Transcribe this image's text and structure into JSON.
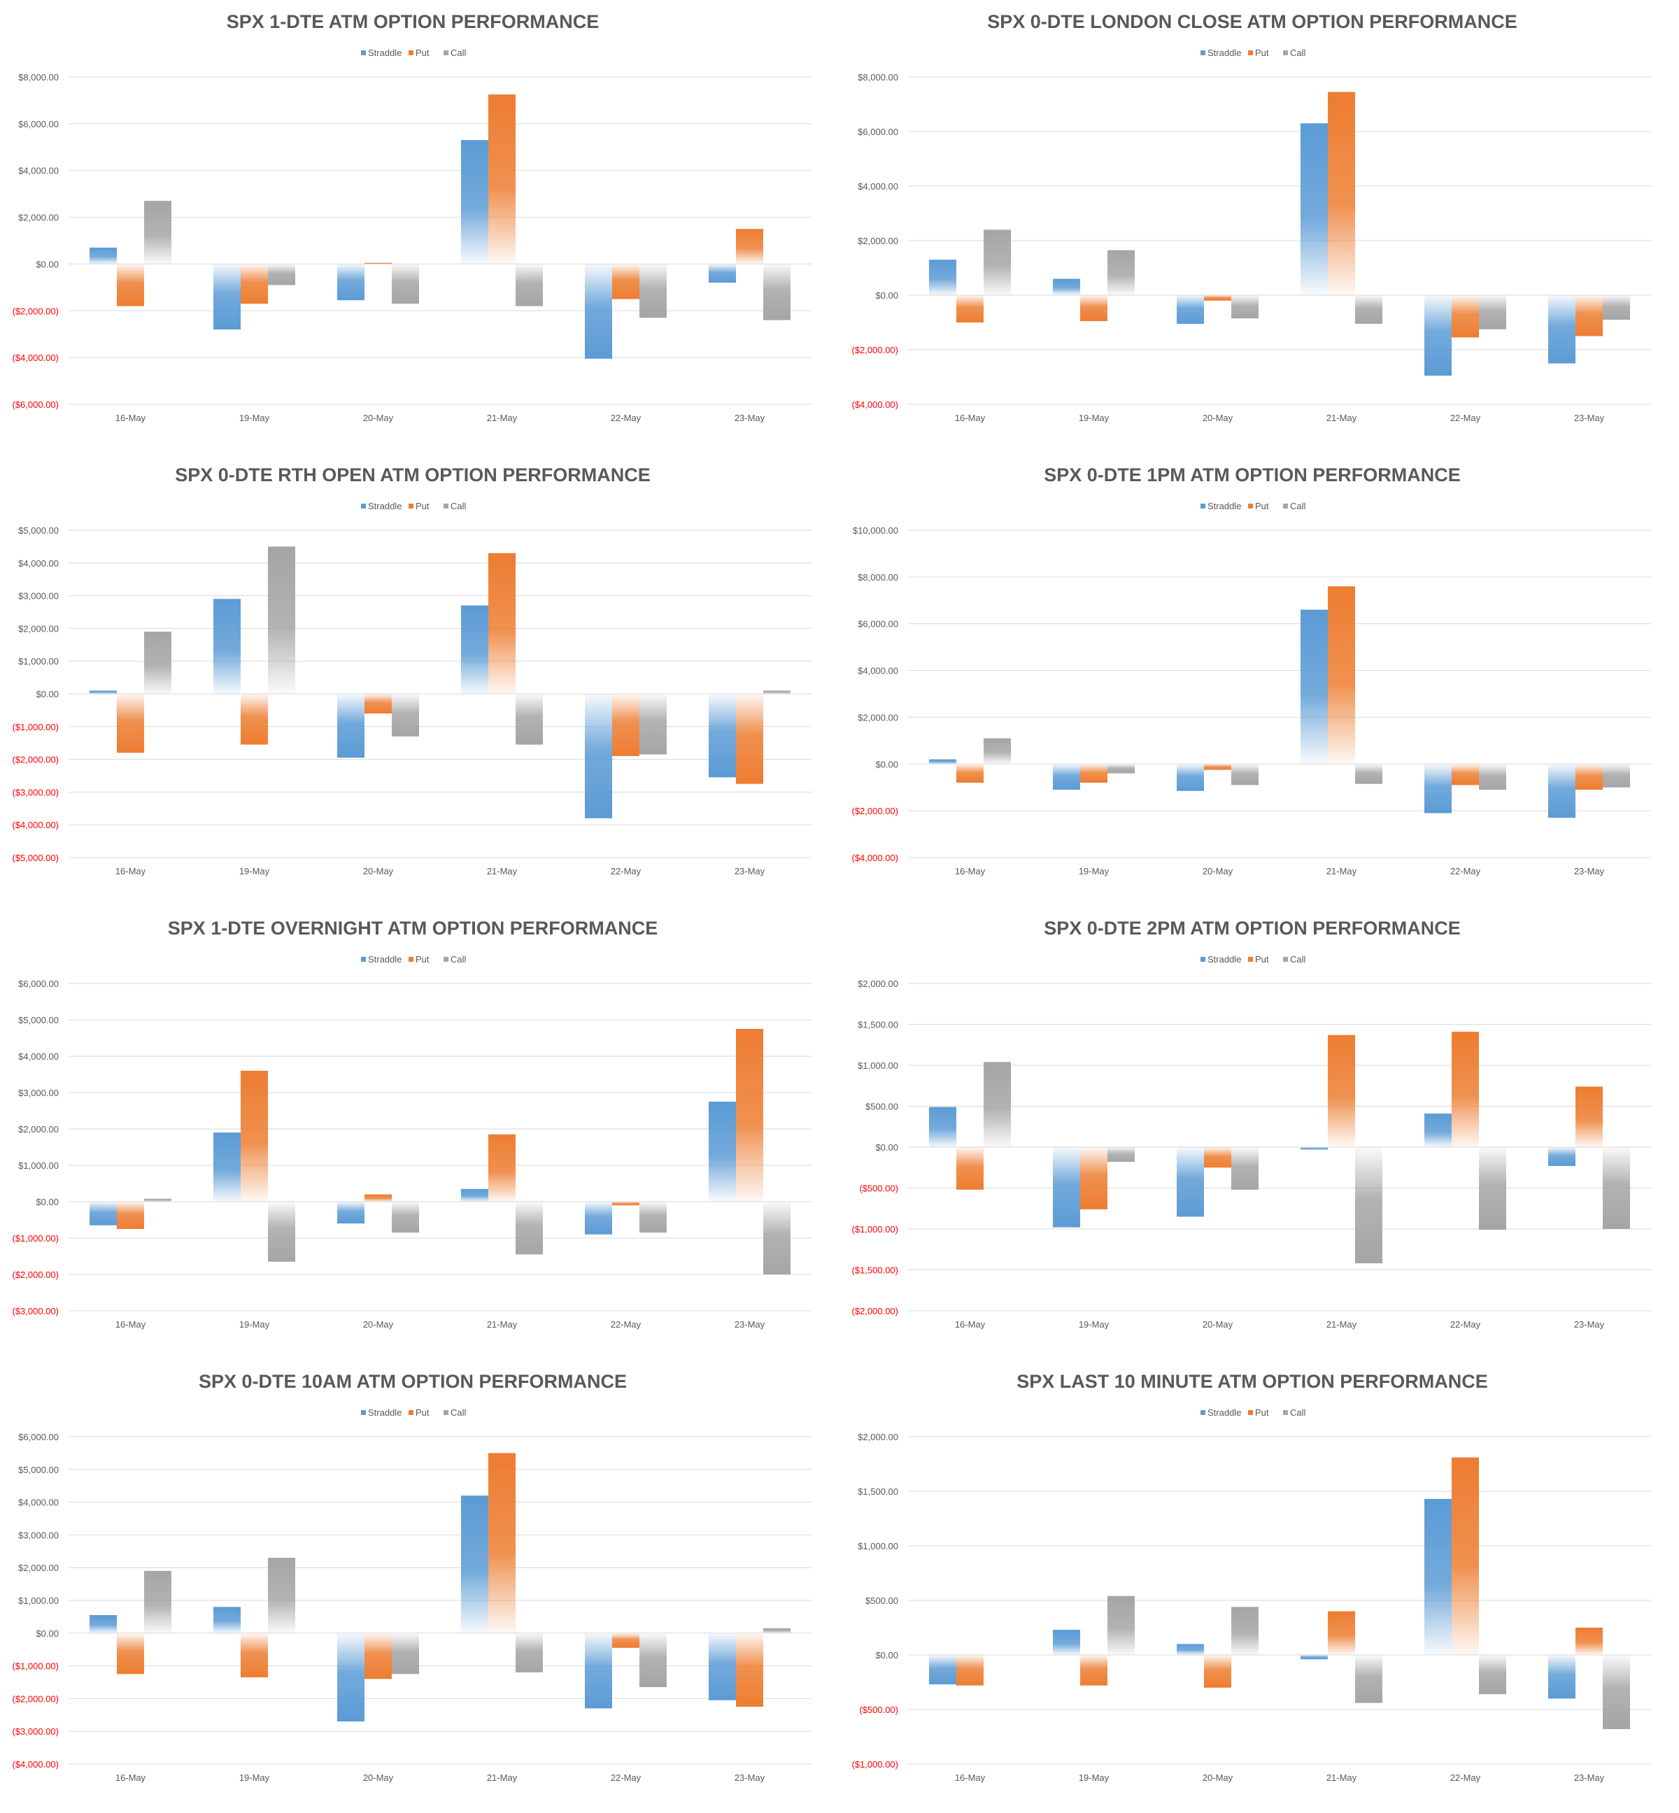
{
  "palette": {
    "straddle": "#5B9BD5",
    "put": "#ED7D31",
    "call": "#A5A5A5",
    "negative_tick": "#FF0000",
    "positive_tick": "#595959",
    "grid": "#D9D9D9"
  },
  "chart_data": [
    {
      "type": "bar",
      "title": "SPX 1-DTE ATM OPTION PERFORMANCE",
      "categories": [
        "16-May",
        "19-May",
        "20-May",
        "21-May",
        "22-May",
        "23-May"
      ],
      "series": [
        {
          "name": "Straddle",
          "values": [
            700,
            -2800,
            -1550,
            5300,
            -4050,
            -800
          ]
        },
        {
          "name": "Put",
          "values": [
            -1800,
            -1700,
            50,
            7250,
            -1500,
            1500
          ]
        },
        {
          "name": "Call",
          "values": [
            2700,
            -900,
            -1700,
            -1800,
            -2300,
            -2400
          ]
        }
      ],
      "ylim": [
        -6000,
        8000
      ],
      "ystep": 2000,
      "yticks": [
        "$8,000.00",
        "$6,000.00",
        "$4,000.00",
        "$2,000.00",
        "$0.00",
        "($2,000.00)",
        "($4,000.00)",
        "($6,000.00)"
      ],
      "xlabel": "",
      "ylabel": "",
      "grid": true,
      "legend": "top"
    },
    {
      "type": "bar",
      "title": "SPX 0-DTE  LONDON CLOSE ATM OPTION PERFORMANCE",
      "categories": [
        "16-May",
        "19-May",
        "20-May",
        "21-May",
        "22-May",
        "23-May"
      ],
      "series": [
        {
          "name": "Straddle",
          "values": [
            1300,
            600,
            -1050,
            6300,
            -2950,
            -2500
          ]
        },
        {
          "name": "Put",
          "values": [
            -1000,
            -950,
            -200,
            7450,
            -1550,
            -1500
          ]
        },
        {
          "name": "Call",
          "values": [
            2400,
            1650,
            -850,
            -1050,
            -1250,
            -900
          ]
        }
      ],
      "ylim": [
        -4000,
        8000
      ],
      "ystep": 2000,
      "yticks": [
        "$8,000.00",
        "$6,000.00",
        "$4,000.00",
        "$2,000.00",
        "$0.00",
        "($2,000.00)",
        "($4,000.00)"
      ],
      "xlabel": "",
      "ylabel": "",
      "grid": true,
      "legend": "top"
    },
    {
      "type": "bar",
      "title": "SPX 0-DTE RTH OPEN ATM OPTION PERFORMANCE",
      "categories": [
        "16-May",
        "19-May",
        "20-May",
        "21-May",
        "22-May",
        "23-May"
      ],
      "series": [
        {
          "name": "Straddle",
          "values": [
            100,
            2900,
            -1950,
            2700,
            -3800,
            -2550
          ]
        },
        {
          "name": "Put",
          "values": [
            -1800,
            -1550,
            -600,
            4300,
            -1900,
            -2750
          ]
        },
        {
          "name": "Call",
          "values": [
            1900,
            4500,
            -1300,
            -1550,
            -1850,
            100
          ]
        }
      ],
      "ylim": [
        -5000,
        5000
      ],
      "ystep": 1000,
      "yticks": [
        "$5,000.00",
        "$4,000.00",
        "$3,000.00",
        "$2,000.00",
        "$1,000.00",
        "$0.00",
        "($1,000.00)",
        "($2,000.00)",
        "($3,000.00)",
        "($4,000.00)",
        "($5,000.00)"
      ],
      "xlabel": "",
      "ylabel": "",
      "grid": true,
      "legend": "top"
    },
    {
      "type": "bar",
      "title": "SPX 0-DTE 1PM ATM OPTION PERFORMANCE",
      "categories": [
        "16-May",
        "19-May",
        "20-May",
        "21-May",
        "22-May",
        "23-May"
      ],
      "series": [
        {
          "name": "Straddle",
          "values": [
            200,
            -1100,
            -1150,
            6600,
            -2100,
            -2300
          ]
        },
        {
          "name": "Put",
          "values": [
            -800,
            -800,
            -250,
            7600,
            -900,
            -1100
          ]
        },
        {
          "name": "Call",
          "values": [
            1100,
            -400,
            -900,
            -850,
            -1100,
            -1000
          ]
        }
      ],
      "ylim": [
        -4000,
        10000
      ],
      "ystep": 2000,
      "yticks": [
        "$10,000.00",
        "$8,000.00",
        "$6,000.00",
        "$4,000.00",
        "$2,000.00",
        "$0.00",
        "($2,000.00)",
        "($4,000.00)"
      ],
      "xlabel": "",
      "ylabel": "",
      "grid": true,
      "legend": "top"
    },
    {
      "type": "bar",
      "title": "SPX 1-DTE OVERNIGHT ATM OPTION PERFORMANCE",
      "categories": [
        "16-May",
        "19-May",
        "20-May",
        "21-May",
        "22-May",
        "23-May"
      ],
      "series": [
        {
          "name": "Straddle",
          "values": [
            -650,
            1900,
            -600,
            350,
            -900,
            2750
          ]
        },
        {
          "name": "Put",
          "values": [
            -750,
            3600,
            200,
            1850,
            -100,
            4750
          ]
        },
        {
          "name": "Call",
          "values": [
            80,
            -1650,
            -850,
            -1450,
            -850,
            -2000
          ]
        }
      ],
      "ylim": [
        -3000,
        6000
      ],
      "ystep": 1000,
      "yticks": [
        "$6,000.00",
        "$5,000.00",
        "$4,000.00",
        "$3,000.00",
        "$2,000.00",
        "$1,000.00",
        "$0.00",
        "($1,000.00)",
        "($2,000.00)",
        "($3,000.00)"
      ],
      "xlabel": "",
      "ylabel": "",
      "grid": true,
      "legend": "top"
    },
    {
      "type": "bar",
      "title": "SPX 0-DTE 2PM ATM OPTION PERFORMANCE",
      "categories": [
        "16-May",
        "19-May",
        "20-May",
        "21-May",
        "22-May",
        "23-May"
      ],
      "series": [
        {
          "name": "Straddle",
          "values": [
            490,
            -980,
            -850,
            -30,
            410,
            -230
          ]
        },
        {
          "name": "Put",
          "values": [
            -520,
            -760,
            -250,
            1370,
            1410,
            740
          ]
        },
        {
          "name": "Call",
          "values": [
            1040,
            -180,
            -520,
            -1420,
            -1010,
            -1000
          ]
        }
      ],
      "ylim": [
        -2000,
        2000
      ],
      "ystep": 500,
      "yticks": [
        "$2,000.00",
        "$1,500.00",
        "$1,000.00",
        "$500.00",
        "$0.00",
        "($500.00)",
        "($1,000.00)",
        "($1,500.00)",
        "($2,000.00)"
      ],
      "xlabel": "",
      "ylabel": "",
      "grid": true,
      "legend": "top"
    },
    {
      "type": "bar",
      "title": "SPX 0-DTE 10AM ATM OPTION PERFORMANCE",
      "categories": [
        "16-May",
        "19-May",
        "20-May",
        "21-May",
        "22-May",
        "23-May"
      ],
      "series": [
        {
          "name": "Straddle",
          "values": [
            550,
            800,
            -2700,
            4200,
            -2300,
            -2050
          ]
        },
        {
          "name": "Put",
          "values": [
            -1250,
            -1350,
            -1400,
            5500,
            -450,
            -2250
          ]
        },
        {
          "name": "Call",
          "values": [
            1900,
            2300,
            -1250,
            -1200,
            -1650,
            150
          ]
        }
      ],
      "ylim": [
        -4000,
        6000
      ],
      "ystep": 1000,
      "yticks": [
        "$6,000.00",
        "$5,000.00",
        "$4,000.00",
        "$3,000.00",
        "$2,000.00",
        "$1,000.00",
        "$0.00",
        "($1,000.00)",
        "($2,000.00)",
        "($3,000.00)",
        "($4,000.00)"
      ],
      "xlabel": "",
      "ylabel": "",
      "grid": true,
      "legend": "top"
    },
    {
      "type": "bar",
      "title": "SPX LAST 10 MINUTE ATM OPTION PERFORMANCE",
      "categories": [
        "16-May",
        "19-May",
        "20-May",
        "21-May",
        "22-May",
        "23-May"
      ],
      "series": [
        {
          "name": "Straddle",
          "values": [
            -270,
            230,
            100,
            -40,
            1430,
            -400
          ]
        },
        {
          "name": "Put",
          "values": [
            -280,
            -280,
            -300,
            400,
            1810,
            250
          ]
        },
        {
          "name": "Call",
          "values": [
            0,
            540,
            440,
            -440,
            -360,
            -680
          ]
        }
      ],
      "ylim": [
        -1000,
        2000
      ],
      "ystep": 500,
      "yticks": [
        "$2,000.00",
        "$1,500.00",
        "$1,000.00",
        "$500.00",
        "$0.00",
        "($500.00)",
        "($1,000.00)"
      ],
      "xlabel": "",
      "ylabel": "",
      "grid": true,
      "legend": "top"
    }
  ]
}
